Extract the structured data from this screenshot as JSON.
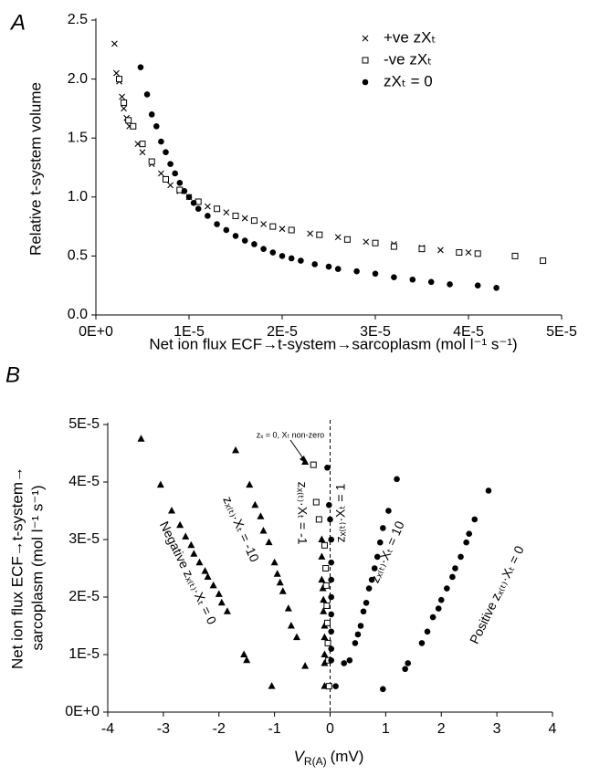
{
  "chart_data": [
    {
      "type": "scatter",
      "panel_label": "A",
      "x_label": "Net ion flux ECF→t-system→sarcoplasm (mol l⁻¹ s⁻¹)",
      "y_label": "Relative t-system volume",
      "xlim": [
        0,
        5e-05
      ],
      "xticks": [
        {
          "value": 0,
          "label": "0E+0"
        },
        {
          "value": 1e-05,
          "label": "1E-5"
        },
        {
          "value": 2e-05,
          "label": "2E-5"
        },
        {
          "value": 3e-05,
          "label": "3E-5"
        },
        {
          "value": 4e-05,
          "label": "4E-5"
        },
        {
          "value": 5e-05,
          "label": "5E-5"
        }
      ],
      "ylim": [
        0,
        2.5
      ],
      "yticks": [
        {
          "value": 0,
          "label": "0.0"
        },
        0.5,
        {
          "value": 1,
          "label": "1.0"
        },
        1.5,
        {
          "value": 2,
          "label": "2.0"
        },
        2.5
      ],
      "legend": "upper right",
      "series": [
        {
          "name": "+ve zXₜ",
          "marker": "cross",
          "color": "#000000",
          "x": [
            2e-06,
            2.2e-06,
            2.5e-06,
            2.8e-06,
            3e-06,
            3.3e-06,
            3.6e-06,
            4.5e-06,
            5e-06,
            6e-06,
            7e-06,
            8e-06,
            9e-06,
            1e-05,
            1.2e-05,
            1.4e-05,
            1.6e-05,
            1.8e-05,
            2e-05,
            2.3e-05,
            2.6e-05,
            2.9e-05,
            3.2e-05,
            3.5e-05,
            3.7e-05,
            4e-05
          ],
          "y": [
            2.3,
            2.05,
            1.98,
            1.85,
            1.75,
            1.67,
            1.6,
            1.45,
            1.38,
            1.28,
            1.2,
            1.1,
            1.05,
            1.0,
            0.92,
            0.87,
            0.82,
            0.77,
            0.73,
            0.69,
            0.66,
            0.62,
            0.6,
            0.57,
            0.55,
            0.53
          ]
        },
        {
          "name": "-ve zXₜ",
          "marker": "square",
          "color": "#000000",
          "x": [
            2.5e-06,
            3e-06,
            3.5e-06,
            4e-06,
            5e-06,
            6e-06,
            7.5e-06,
            9e-06,
            1.1e-05,
            1.3e-05,
            1.5e-05,
            1.7e-05,
            1.9e-05,
            2.1e-05,
            2.4e-05,
            2.7e-05,
            3e-05,
            3.2e-05,
            3.5e-05,
            3.9e-05,
            4.1e-05,
            4.5e-05,
            4.8e-05
          ],
          "y": [
            2.0,
            1.8,
            1.65,
            1.6,
            1.45,
            1.3,
            1.15,
            1.06,
            0.96,
            0.9,
            0.84,
            0.8,
            0.75,
            0.72,
            0.68,
            0.64,
            0.61,
            0.58,
            0.56,
            0.53,
            0.52,
            0.5,
            0.46
          ]
        },
        {
          "name": "zXₜ = 0",
          "marker": "circle",
          "color": "#000000",
          "x": [
            4.8e-06,
            5.5e-06,
            6e-06,
            6.5e-06,
            7e-06,
            7.5e-06,
            8e-06,
            8.5e-06,
            9e-06,
            9.5e-06,
            1e-05,
            1.05e-05,
            1.1e-05,
            1.2e-05,
            1.3e-05,
            1.4e-05,
            1.5e-05,
            1.6e-05,
            1.7e-05,
            1.8e-05,
            1.9e-05,
            2e-05,
            2.1e-05,
            2.2e-05,
            2.35e-05,
            2.5e-05,
            2.6e-05,
            2.8e-05,
            3e-05,
            3.2e-05,
            3.4e-05,
            3.6e-05,
            3.8e-05,
            4.1e-05,
            4.3e-05
          ],
          "y": [
            2.1,
            1.87,
            1.7,
            1.6,
            1.47,
            1.38,
            1.28,
            1.2,
            1.12,
            1.05,
            1.0,
            0.95,
            0.9,
            0.84,
            0.77,
            0.72,
            0.67,
            0.63,
            0.6,
            0.56,
            0.53,
            0.5,
            0.48,
            0.46,
            0.43,
            0.41,
            0.39,
            0.37,
            0.35,
            0.32,
            0.3,
            0.28,
            0.26,
            0.25,
            0.23
          ]
        }
      ]
    },
    {
      "type": "scatter",
      "panel_label": "B",
      "x_label": [
        "V",
        "R(A)",
        "(mV)"
      ],
      "y_label": [
        "Net ion flux ECF→t-system→",
        "sarcoplasm (mol l⁻¹ s⁻¹)"
      ],
      "xlim": [
        -4,
        4
      ],
      "xticks": [
        -4,
        -3,
        -2,
        -1,
        0,
        1,
        2,
        3,
        4
      ],
      "ylim": [
        0,
        5e-05
      ],
      "yticks": [
        {
          "value": 0,
          "label": "0E+0"
        },
        {
          "value": 1e-05,
          "label": "1E-5"
        },
        {
          "value": 2e-05,
          "label": "2E-5"
        },
        {
          "value": 3e-05,
          "label": "3E-5"
        },
        {
          "value": 4e-05,
          "label": "4E-5"
        },
        {
          "value": 5e-05,
          "label": "5E-5"
        }
      ],
      "vline": 0,
      "annotations": [
        "Negative zₓ₍ₜ₎·Xₜ = 0",
        "zₓ₍ₜ₎·Xₜ = -10",
        "zₓ₍ₜ₎·Xₜ = -1",
        "zₓ₍ₜ₎·Xₜ = 1",
        "zₓ₍ₜ₎·Xₜ = 10",
        "Positive zₓ₍ₜ₎·Xₜ = 0",
        "zₓ = 0, Xₜ non-zero"
      ],
      "series": [
        {
          "marker": "triangle",
          "color": "#000000",
          "x": [
            -3.4,
            -3.05,
            -2.85,
            -2.7,
            -2.6,
            -2.5,
            -2.45,
            -2.35,
            -2.25,
            -2.2,
            -2.1,
            -2.0,
            -1.95,
            -1.85,
            -1.55,
            -1.5,
            -1.7,
            -1.45,
            -1.35,
            -1.25,
            -1.2,
            -1.1,
            -1.0,
            -0.95,
            -0.9,
            -0.85,
            -0.75,
            -0.7,
            -0.6,
            -0.45,
            -1.05,
            -0.45,
            -0.15,
            -0.15,
            -0.15,
            -0.13,
            -0.12,
            -0.12,
            -0.1,
            -0.1,
            -0.1,
            -0.1,
            -0.1
          ],
          "y": [
            4.75e-05,
            3.95e-05,
            3.5e-05,
            3.25e-05,
            3.05e-05,
            2.9e-05,
            2.75e-05,
            2.6e-05,
            2.45e-05,
            2.35e-05,
            2.2e-05,
            2.05e-05,
            1.9e-05,
            1.75e-05,
            1e-05,
            9e-06,
            4.55e-05,
            3.95e-05,
            3.6e-05,
            3.4e-05,
            3.15e-05,
            2.95e-05,
            2.6e-05,
            2.4e-05,
            2.25e-05,
            2.1e-05,
            1.8e-05,
            1.5e-05,
            1.3e-05,
            8e-06,
            4.5e-06,
            4.35e-05,
            3e-05,
            2.7e-05,
            2.3e-05,
            2.15e-05,
            1.95e-05,
            1.75e-05,
            1.5e-05,
            1.3e-05,
            1e-05,
            8.5e-06,
            4.5e-06
          ]
        },
        {
          "marker": "square",
          "color": "#000000",
          "x": [
            -0.3,
            -0.25,
            -0.2,
            -0.1,
            -0.08,
            -0.07,
            -0.06,
            -0.05,
            -0.04,
            -0.03,
            -0.02
          ],
          "y": [
            4.3e-05,
            3.65e-05,
            3.35e-05,
            2.9e-05,
            2.5e-05,
            2.2e-05,
            1.85e-05,
            1.55e-05,
            1.2e-05,
            9e-06,
            4.5e-06
          ]
        },
        {
          "marker": "circle",
          "color": "#000000",
          "x": [
            -0.05,
            -0.02,
            0,
            0.02,
            0.02,
            0.02,
            0.02,
            0.02,
            0.02,
            0.02,
            0.02,
            0.1,
            1.2,
            1.05,
            0.95,
            0.9,
            0.85,
            0.8,
            0.75,
            0.7,
            0.65,
            0.6,
            0.55,
            0.5,
            0.45,
            0.35,
            0.25,
            2.85,
            2.6,
            2.5,
            2.45,
            2.35,
            2.25,
            2.2,
            2.1,
            2.0,
            1.95,
            1.85,
            1.75,
            1.65,
            1.4,
            1.35,
            0.95
          ],
          "y": [
            4.25e-05,
            3.6e-05,
            3.35e-05,
            3e-05,
            2.6e-05,
            2.3e-05,
            2e-05,
            1.7e-05,
            1.4e-05,
            1.1e-05,
            9e-06,
            4.5e-06,
            4.05e-05,
            3.5e-05,
            3.2e-05,
            2.95e-05,
            2.7e-05,
            2.5e-05,
            2.3e-05,
            2.15e-05,
            1.9e-05,
            1.75e-05,
            1.5e-05,
            1.35e-05,
            1.2e-05,
            9e-06,
            8.5e-06,
            3.85e-05,
            3.35e-05,
            3.1e-05,
            2.95e-05,
            2.7e-05,
            2.5e-05,
            2.35e-05,
            2.15e-05,
            1.95e-05,
            1.8e-05,
            1.65e-05,
            1.4e-05,
            1.2e-05,
            8.5e-06,
            7.5e-06,
            4e-06
          ]
        }
      ]
    }
  ]
}
